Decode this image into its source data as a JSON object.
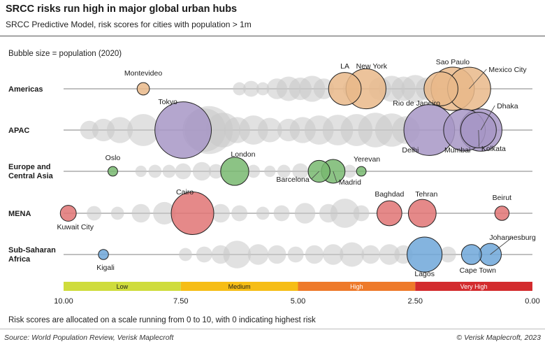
{
  "header": {
    "title": "SRCC risks run high in major global urban hubs",
    "subtitle": "SRCC Predictive Model, risk scores for cities with population > 1m"
  },
  "legend": {
    "bubble_note": "Bubble size = population (2020)"
  },
  "footer": {
    "note": "Risk scores are allocated on a scale running from 0 to 10, with 0 indicating highest risk",
    "source": "Source: World Population Review, Verisk Maplecroft",
    "copyright": "© Verisk Maplecroft, 2023"
  },
  "chart_data": {
    "type": "scatter",
    "title": "SRCC risks run high in major global urban hubs",
    "xlim": [
      10,
      0
    ],
    "x_ticks": [
      "10.00",
      "7.50",
      "5.00",
      "2.50",
      "0.00"
    ],
    "x_tick_values": [
      10,
      7.5,
      5,
      2.5,
      0
    ],
    "risk_bands": [
      {
        "label": "Low",
        "from": 10,
        "to": 7.5,
        "color": "#cfdc3c"
      },
      {
        "label": "Medium",
        "from": 7.5,
        "to": 5,
        "color": "#f6bd16"
      },
      {
        "label": "High",
        "from": 5,
        "to": 2.5,
        "color": "#ee7a2a"
      },
      {
        "label": "Very High",
        "from": 2.5,
        "to": 0,
        "color": "#d32b2e"
      }
    ],
    "regions": [
      {
        "name": "Americas",
        "color": "#e9b88a",
        "highlighted": [
          {
            "city": "Montevideo",
            "score": 8.3,
            "pop": 1.8
          },
          {
            "city": "LA",
            "score": 4.0,
            "pop": 12.5
          },
          {
            "city": "New York",
            "score": 3.55,
            "pop": 18.8
          },
          {
            "city": "Sao Paulo",
            "score": 1.7,
            "pop": 22
          },
          {
            "city": "Rio de Janeiro",
            "score": 1.95,
            "pop": 13.5
          },
          {
            "city": "Mexico City",
            "score": 1.35,
            "pop": 21.8
          }
        ],
        "others": [
          {
            "score": 6.25,
            "pop": 2
          },
          {
            "score": 6.0,
            "pop": 3
          },
          {
            "score": 5.75,
            "pop": 2
          },
          {
            "score": 5.45,
            "pop": 5
          },
          {
            "score": 5.2,
            "pop": 7
          },
          {
            "score": 4.95,
            "pop": 6
          },
          {
            "score": 4.7,
            "pop": 8
          },
          {
            "score": 4.45,
            "pop": 5
          },
          {
            "score": 3.85,
            "pop": 4
          },
          {
            "score": 3.25,
            "pop": 6
          },
          {
            "score": 3.0,
            "pop": 8
          },
          {
            "score": 2.75,
            "pop": 7
          },
          {
            "score": 2.5,
            "pop": 9
          },
          {
            "score": 2.25,
            "pop": 6
          },
          {
            "score": 2.05,
            "pop": 5
          }
        ]
      },
      {
        "name": "APAC",
        "color": "#a796c6",
        "highlighted": [
          {
            "city": "Tokyo",
            "score": 7.45,
            "pop": 37.5
          },
          {
            "city": "Delhi",
            "score": 2.2,
            "pop": 30.3
          },
          {
            "city": "Mumbai",
            "score": 1.45,
            "pop": 20.4
          },
          {
            "city": "Dhaka",
            "score": 1.1,
            "pop": 21
          },
          {
            "city": "Kolkata",
            "score": 1.15,
            "pop": 14.9
          }
        ],
        "others": [
          {
            "score": 9.45,
            "pop": 4
          },
          {
            "score": 9.15,
            "pop": 6
          },
          {
            "score": 8.8,
            "pop": 8
          },
          {
            "score": 8.3,
            "pop": 12
          },
          {
            "score": 6.9,
            "pop": 27
          },
          {
            "score": 7.0,
            "pop": 22
          },
          {
            "score": 6.6,
            "pop": 14
          },
          {
            "score": 6.3,
            "pop": 8
          },
          {
            "score": 5.95,
            "pop": 10
          },
          {
            "score": 5.6,
            "pop": 7
          },
          {
            "score": 5.2,
            "pop": 6
          },
          {
            "score": 4.9,
            "pop": 8
          },
          {
            "score": 4.55,
            "pop": 10
          },
          {
            "score": 4.15,
            "pop": 11
          },
          {
            "score": 3.75,
            "pop": 12
          },
          {
            "score": 3.35,
            "pop": 14
          },
          {
            "score": 3.0,
            "pop": 13
          },
          {
            "score": 2.7,
            "pop": 9
          }
        ]
      },
      {
        "name": "Europe and\nCentral Asia",
        "color": "#78b870",
        "highlighted": [
          {
            "city": "Oslo",
            "score": 8.95,
            "pop": 1.1
          },
          {
            "city": "London",
            "score": 6.35,
            "pop": 9.3
          },
          {
            "city": "Barcelona",
            "score": 4.55,
            "pop": 5.6
          },
          {
            "city": "Madrid",
            "score": 4.25,
            "pop": 6.6
          },
          {
            "city": "Yerevan",
            "score": 3.65,
            "pop": 1.1
          }
        ],
        "others": [
          {
            "score": 8.35,
            "pop": 1.5
          },
          {
            "score": 8.05,
            "pop": 2
          },
          {
            "score": 7.75,
            "pop": 2
          },
          {
            "score": 7.45,
            "pop": 3
          },
          {
            "score": 7.05,
            "pop": 4
          },
          {
            "score": 6.75,
            "pop": 2.5
          },
          {
            "score": 5.95,
            "pop": 2
          },
          {
            "score": 5.6,
            "pop": 1.5
          },
          {
            "score": 5.3,
            "pop": 2
          },
          {
            "score": 4.95,
            "pop": 3
          },
          {
            "score": 3.9,
            "pop": 2
          }
        ]
      },
      {
        "name": "MENA",
        "color": "#e07474",
        "highlighted": [
          {
            "city": "Kuwait City",
            "score": 9.9,
            "pop": 3
          },
          {
            "city": "Cairo",
            "score": 7.25,
            "pop": 21.3
          },
          {
            "city": "Baghdad",
            "score": 3.05,
            "pop": 7.3
          },
          {
            "city": "Tehran",
            "score": 2.35,
            "pop": 9.1
          },
          {
            "city": "Beirut",
            "score": 0.65,
            "pop": 2.4
          }
        ],
        "others": [
          {
            "score": 9.35,
            "pop": 2.5
          },
          {
            "score": 8.85,
            "pop": 2
          },
          {
            "score": 8.35,
            "pop": 4
          },
          {
            "score": 7.85,
            "pop": 6
          },
          {
            "score": 6.65,
            "pop": 4
          },
          {
            "score": 6.25,
            "pop": 3
          },
          {
            "score": 5.75,
            "pop": 2
          },
          {
            "score": 5.35,
            "pop": 3
          },
          {
            "score": 4.85,
            "pop": 5
          },
          {
            "score": 4.35,
            "pop": 4
          },
          {
            "score": 4.0,
            "pop": 10
          },
          {
            "score": 3.65,
            "pop": 3
          }
        ]
      },
      {
        "name": "Sub-Saharan\nAfrica",
        "color": "#6fa7d9",
        "highlighted": [
          {
            "city": "Kigali",
            "score": 9.15,
            "pop": 1.2
          },
          {
            "city": "Lagos",
            "score": 2.3,
            "pop": 14.4
          },
          {
            "city": "Cape Town",
            "score": 1.3,
            "pop": 4.7
          },
          {
            "city": "Johannesburg",
            "score": 0.9,
            "pop": 5.8
          }
        ],
        "others": [
          {
            "score": 7.4,
            "pop": 2
          },
          {
            "score": 7.0,
            "pop": 3
          },
          {
            "score": 6.65,
            "pop": 4
          },
          {
            "score": 6.3,
            "pop": 9
          },
          {
            "score": 5.85,
            "pop": 5
          },
          {
            "score": 5.45,
            "pop": 4
          },
          {
            "score": 5.05,
            "pop": 3
          },
          {
            "score": 4.65,
            "pop": 4
          },
          {
            "score": 4.25,
            "pop": 5
          },
          {
            "score": 3.85,
            "pop": 7
          },
          {
            "score": 3.45,
            "pop": 4
          },
          {
            "score": 3.05,
            "pop": 5
          },
          {
            "score": 2.75,
            "pop": 4
          },
          {
            "score": 1.8,
            "pop": 3
          }
        ]
      }
    ]
  }
}
